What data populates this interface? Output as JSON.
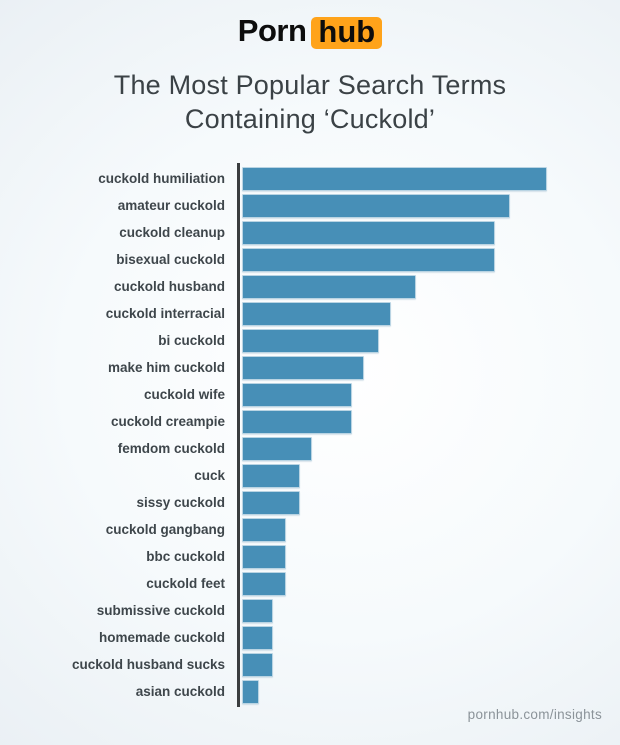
{
  "brand": {
    "logo_text_1": "Porn",
    "logo_text_2": "hub",
    "logo_accent_color": "#ffa31a"
  },
  "title": {
    "line1": "The Most Popular Search Terms",
    "line2": "Containing ‘Cuckold’"
  },
  "footer": {
    "link_text": "pornhub.com/insights"
  },
  "colors": {
    "bar_fill": "#478fb7",
    "bar_outline": "#b9d4e3",
    "axis_line": "#3a3d3f",
    "background_edge": "#e8eef3",
    "title_text": "#3b4246",
    "label_text": "#3e464b",
    "footer_text": "#8b9399"
  },
  "chart_data": {
    "type": "bar",
    "orientation": "horizontal",
    "title": "The Most Popular Search Terms Containing ‘Cuckold’",
    "categories": [
      "cuckold humiliation",
      "amateur cuckold",
      "cuckold cleanup",
      "bisexual cuckold",
      "cuckold husband",
      "cuckold interracial",
      "bi cuckold",
      "make him cuckold",
      "cuckold wife",
      "cuckold creampie",
      "femdom cuckold",
      "cuck",
      "sissy cuckold",
      "cuckold gangbang",
      "bbc cuckold",
      "cuckold feet",
      "submissive cuckold",
      "homemade cuckold",
      "cuckold husband sucks",
      "asian cuckold"
    ],
    "values": [
      100,
      88,
      83,
      83,
      57,
      49,
      45,
      40,
      36,
      36,
      23,
      19,
      19,
      14.5,
      14.5,
      14.5,
      10,
      10,
      10,
      5.5
    ],
    "value_scale": "relative search volume, top term = 100 (no numeric axis shown)",
    "xlim": [
      0,
      100
    ],
    "xlabel": "",
    "ylabel": "",
    "grid": false,
    "legend": false,
    "bar_color": "#478fb7"
  }
}
